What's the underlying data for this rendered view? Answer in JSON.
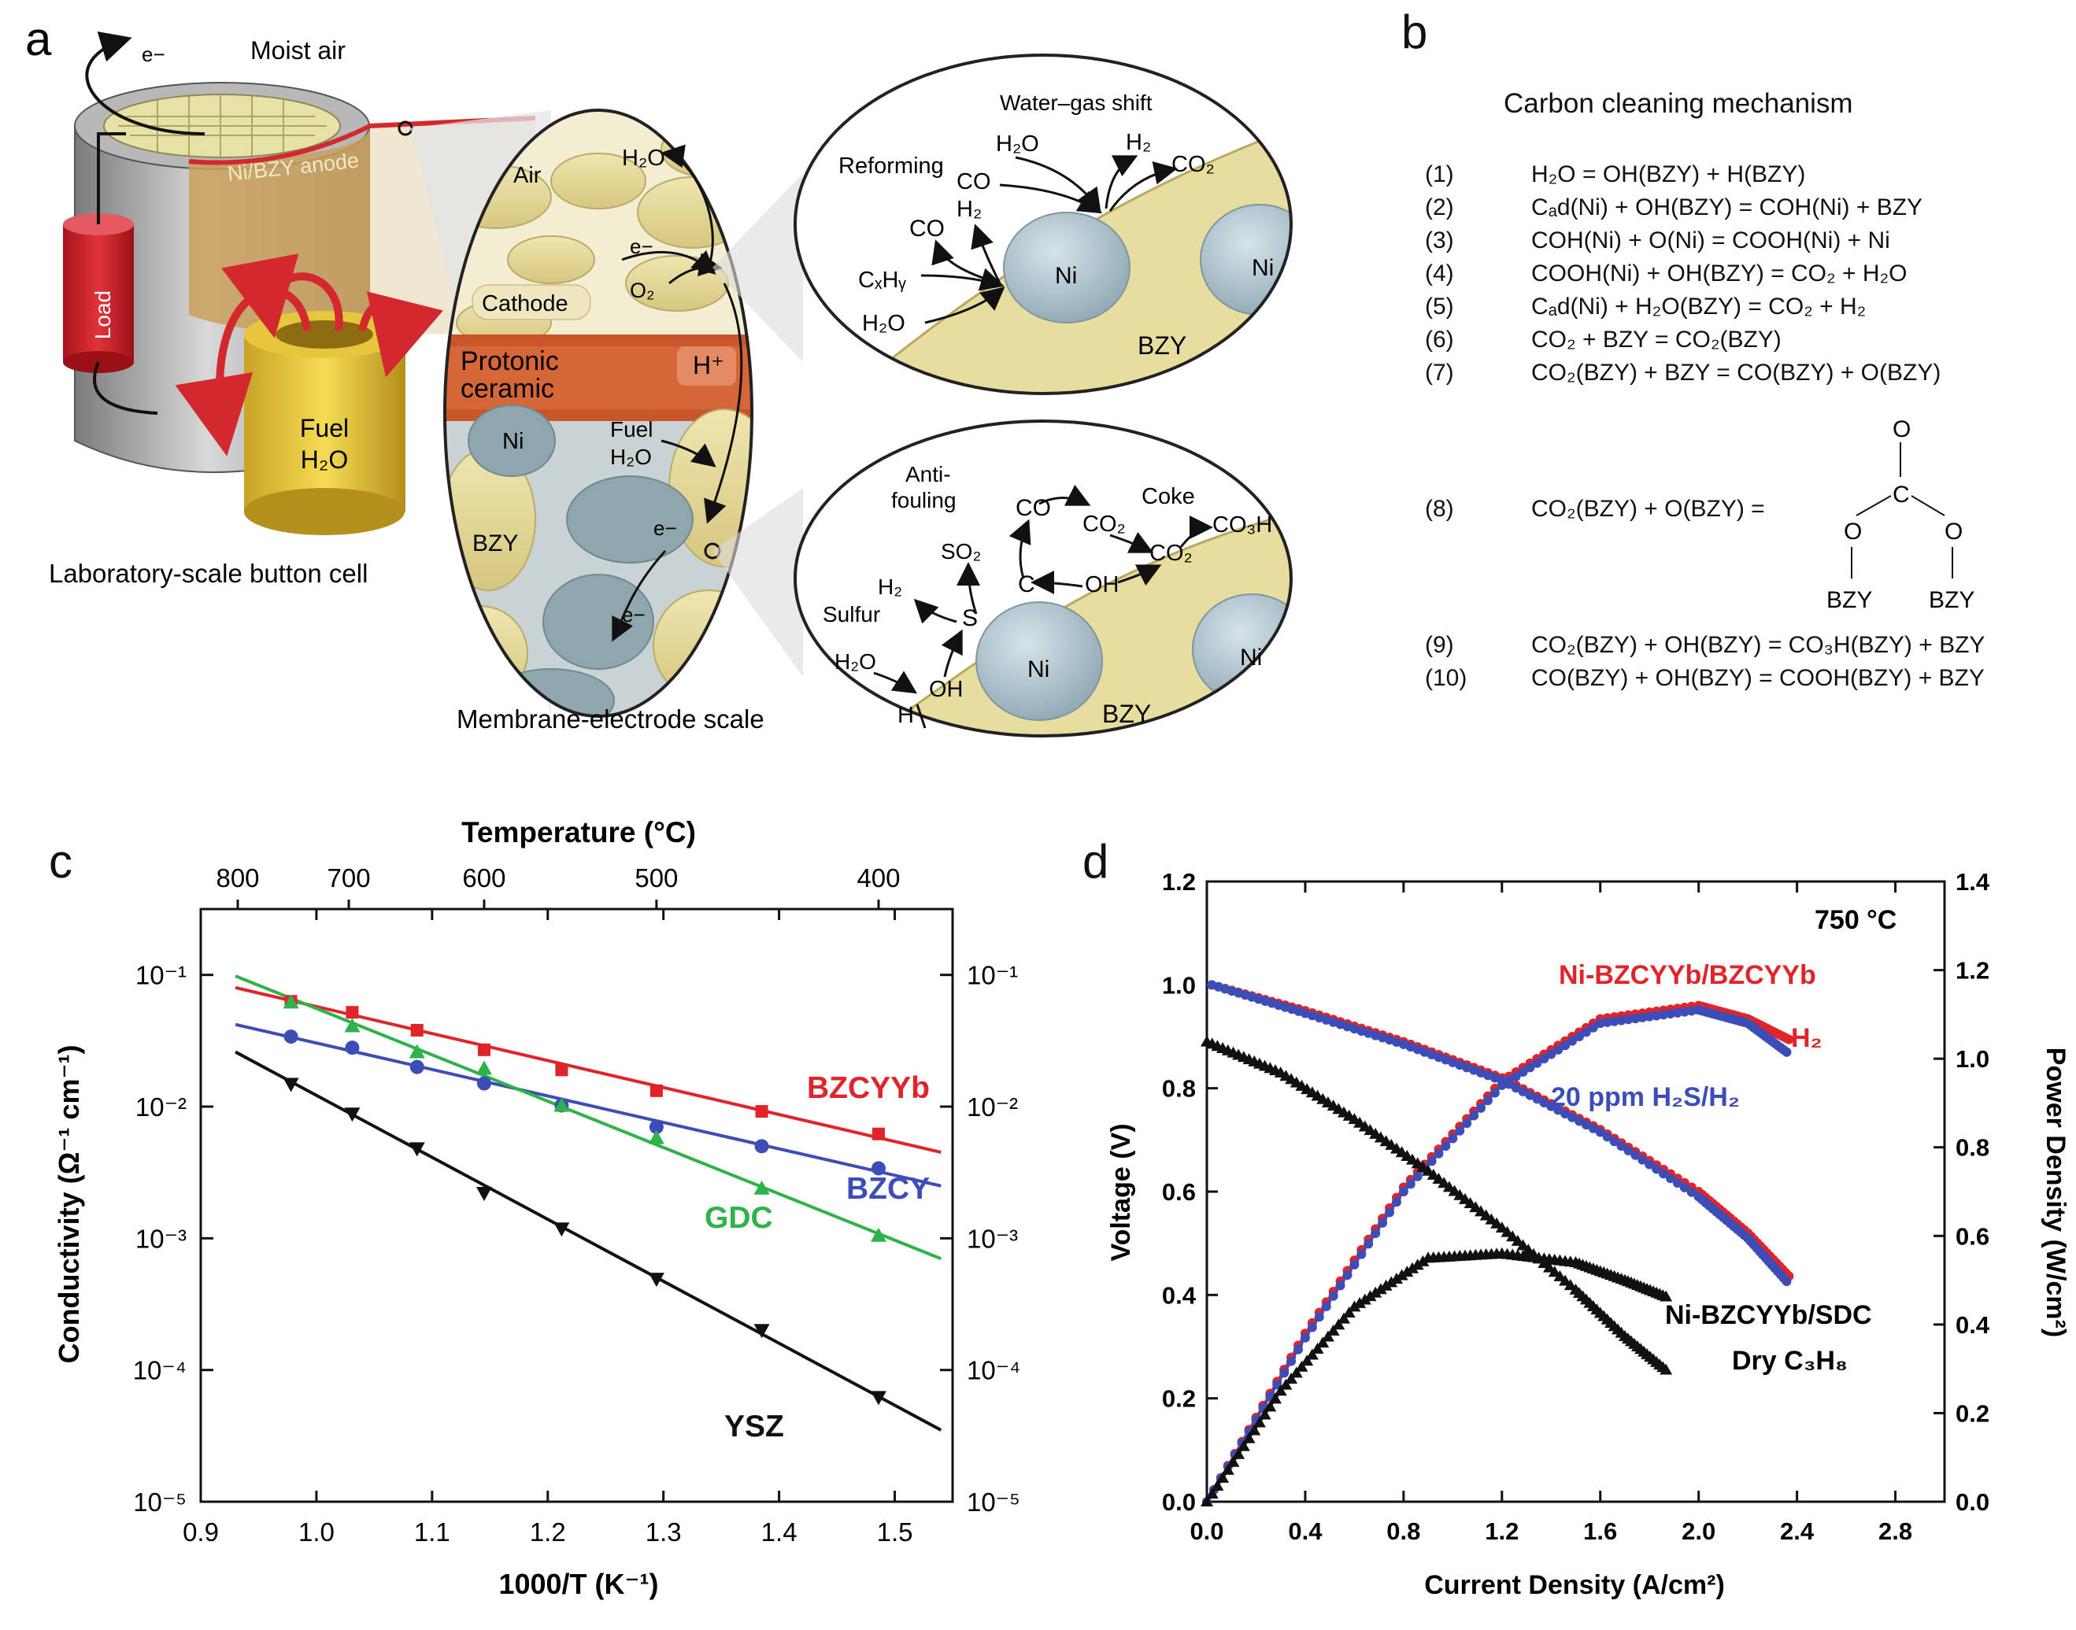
{
  "panel_a": {
    "letter": "a",
    "moist_air": "Moist air",
    "electron": "e−",
    "anode": "Ni/BZY anode",
    "load": "Load",
    "fuel": "Fuel",
    "water": "H₂O",
    "button_cell": "Laboratory-scale button cell",
    "membrane_scale": "Membrane-electrode scale",
    "air": "Air",
    "h2o": "H₂O",
    "o2": "O₂",
    "cathode": "Cathode",
    "protonic": "Protonic",
    "ceramic": "ceramic",
    "hplus": "H⁺",
    "ni": "Ni",
    "bzy": "BZY",
    "fuel_h2o_1": "Fuel",
    "fuel_h2o_2": "H₂O",
    "top_zoom": {
      "water_gas_shift": "Water–gas shift",
      "reforming": "Reforming",
      "co": "CO",
      "h2": "H₂",
      "co2": "CO₂",
      "h2o": "H₂O",
      "cxhy": "CₓHᵧ",
      "ni1": "Ni",
      "ni2": "Ni",
      "bzy": "BZY"
    },
    "bottom_zoom": {
      "anti": "Anti-",
      "fouling": "fouling",
      "coke": "Coke",
      "co": "CO",
      "co2a": "CO₂",
      "co2b": "CO₂",
      "co3h": "CO₃H",
      "so2": "SO₂",
      "h2": "H₂",
      "s": "S",
      "c": "C",
      "oh1": "OH",
      "oh2": "OH",
      "sulfur": "Sulfur",
      "h2o": "H₂O",
      "h": "H",
      "ni1": "Ni",
      "ni2": "Ni",
      "bzy": "BZY"
    }
  },
  "panel_b": {
    "letter": "b",
    "title": "Carbon cleaning mechanism",
    "equations": [
      {
        "num": "(1)",
        "text": "H₂O = OH(BZY) + H(BZY)"
      },
      {
        "num": "(2)",
        "text": "Cₐd(Ni) + OH(BZY) = COH(Ni) + BZY"
      },
      {
        "num": "(3)",
        "text": "COH(Ni) + O(Ni) = COOH(Ni) + Ni"
      },
      {
        "num": "(4)",
        "text": "COOH(Ni) + OH(BZY) = CO₂ + H₂O"
      },
      {
        "num": "(5)",
        "text": "Cₐd(Ni) + H₂O(BZY) = CO₂ + H₂"
      },
      {
        "num": "(6)",
        "text": "CO₂ + BZY = CO₂(BZY)"
      },
      {
        "num": "(7)",
        "text": "CO₂(BZY) + BZY = CO(BZY) + O(BZY)"
      },
      {
        "num": "(8)",
        "text": "CO₂(BZY) + O(BZY) ="
      },
      {
        "num": "(9)",
        "text": "CO₂(BZY) + OH(BZY) = CO₃H(BZY) + BZY"
      },
      {
        "num": "(10)",
        "text": "CO(BZY) + OH(BZY) = COOH(BZY) + BZY"
      }
    ],
    "carbonate": {
      "o_top": "O",
      "c": "C",
      "o_left": "O",
      "o_right": "O",
      "bzy_left": "BZY",
      "bzy_right": "BZY"
    }
  },
  "chart_data": [
    {
      "panel": "c",
      "type": "scatter",
      "xlabel": "1000/T (K⁻¹)",
      "ylabel": "Conductivity (Ω⁻¹ cm⁻¹)",
      "top_label": "Temperature (°C)",
      "xlim": [
        0.9,
        1.55
      ],
      "ylim_log10": [
        -5,
        -0.5
      ],
      "xticks": [
        "0.9",
        "1.0",
        "1.1",
        "1.2",
        "1.3",
        "1.4",
        "1.5"
      ],
      "yticks": [
        "10⁻⁵",
        "10⁻⁴",
        "10⁻³",
        "10⁻²",
        "10⁻¹"
      ],
      "top_ticks": [
        {
          "label": "800",
          "x": 0.932
        },
        {
          "label": "700",
          "x": 1.028
        },
        {
          "label": "600",
          "x": 1.145
        },
        {
          "label": "500",
          "x": 1.294
        },
        {
          "label": "400",
          "x": 1.486
        }
      ],
      "series": [
        {
          "name": "BZCYYb",
          "color": "#e0242a",
          "marker": "square",
          "x": [
            0.978,
            1.031,
            1.087,
            1.145,
            1.212,
            1.294,
            1.385,
            1.486
          ],
          "y": [
            0.063,
            0.052,
            0.038,
            0.027,
            0.019,
            0.0132,
            0.0092,
            0.0062
          ],
          "fit": [
            [
              0.93,
              0.08
            ],
            [
              1.54,
              0.0045
            ]
          ]
        },
        {
          "name": "BZCY",
          "color": "#3d4db8",
          "marker": "circle",
          "x": [
            0.978,
            1.031,
            1.087,
            1.145,
            1.212,
            1.294,
            1.385,
            1.486
          ],
          "y": [
            0.034,
            0.028,
            0.02,
            0.015,
            0.0102,
            0.007,
            0.005,
            0.0034
          ],
          "fit": [
            [
              0.93,
              0.042
            ],
            [
              1.54,
              0.0025
            ]
          ]
        },
        {
          "name": "GDC",
          "color": "#2db34a",
          "marker": "triangle",
          "x": [
            0.978,
            1.031,
            1.087,
            1.145,
            1.212,
            1.294,
            1.385,
            1.486
          ],
          "y": [
            0.062,
            0.041,
            0.026,
            0.0195,
            0.0102,
            0.0058,
            0.0024,
            0.00105
          ],
          "fit": [
            [
              0.93,
              0.098
            ],
            [
              1.54,
              0.0007
            ]
          ]
        },
        {
          "name": "YSZ",
          "color": "#111111",
          "marker": "triangle-down",
          "x": [
            0.978,
            1.031,
            1.087,
            1.145,
            1.212,
            1.294,
            1.385,
            1.486
          ],
          "y": [
            0.0148,
            0.0088,
            0.0048,
            0.0022,
            0.00118,
            0.00049,
            0.0002,
            6.2e-05
          ],
          "fit": [
            [
              0.93,
              0.026
            ],
            [
              1.54,
              3.5e-05
            ]
          ]
        }
      ]
    },
    {
      "panel": "d",
      "type": "line",
      "xlabel": "Current Density (A/cm²)",
      "ylabel": "Voltage (V)",
      "y2label": "Power Density (W/cm²)",
      "xlim": [
        0.0,
        3.0
      ],
      "ylim": [
        0.0,
        1.2
      ],
      "y2lim": [
        0.0,
        1.4
      ],
      "xticks": [
        "0.0",
        "0.4",
        "0.8",
        "1.2",
        "1.6",
        "2.0",
        "2.4",
        "2.8"
      ],
      "yticks": [
        "0.0",
        "0.2",
        "0.4",
        "0.6",
        "0.8",
        "1.0",
        "1.2"
      ],
      "y2ticks": [
        "0.0",
        "0.2",
        "0.4",
        "0.6",
        "0.8",
        "1.0",
        "1.2",
        "1.4"
      ],
      "annotations": {
        "temp": "750 °C",
        "nibzcyyb": "Ni-BZCYYb/BZCYYb",
        "h2": "H₂",
        "h2s": "20 ppm H₂S/H₂",
        "sdc": "Ni-BZCYYb/SDC",
        "c3h8": "Dry C₃H₈"
      },
      "series": [
        {
          "name": "H₂ voltage",
          "color": "#e0242a",
          "axis": "left",
          "x": [
            0.02,
            0.4,
            0.8,
            1.2,
            1.6,
            2.0,
            2.2,
            2.38
          ],
          "y": [
            1.0,
            0.95,
            0.89,
            0.82,
            0.72,
            0.6,
            0.52,
            0.43
          ]
        },
        {
          "name": "H₂ power",
          "color": "#e0242a",
          "axis": "right",
          "x": [
            0.0,
            0.4,
            0.8,
            1.2,
            1.6,
            2.0,
            2.2,
            2.38
          ],
          "y": [
            0.0,
            0.38,
            0.71,
            0.95,
            1.09,
            1.12,
            1.09,
            1.04
          ]
        },
        {
          "name": "20 ppm H₂S/H₂ voltage",
          "color": "#3d4db8",
          "axis": "left",
          "x": [
            0.02,
            0.4,
            0.8,
            1.2,
            1.6,
            2.0,
            2.2,
            2.37
          ],
          "y": [
            1.0,
            0.945,
            0.885,
            0.815,
            0.715,
            0.59,
            0.51,
            0.42
          ]
        },
        {
          "name": "20 ppm H₂S/H₂ power",
          "color": "#3d4db8",
          "axis": "right",
          "x": [
            0.0,
            0.4,
            0.8,
            1.2,
            1.6,
            2.0,
            2.2,
            2.37
          ],
          "y": [
            0.0,
            0.37,
            0.7,
            0.94,
            1.08,
            1.11,
            1.08,
            1.01
          ]
        },
        {
          "name": "Dry C₃H₈ voltage",
          "color": "#111111",
          "axis": "left",
          "x": [
            0.0,
            0.3,
            0.6,
            0.9,
            1.2,
            1.5,
            1.7,
            1.88
          ],
          "y": [
            0.89,
            0.83,
            0.74,
            0.64,
            0.53,
            0.41,
            0.32,
            0.25
          ]
        },
        {
          "name": "Dry C₃H₈ power",
          "color": "#111111",
          "axis": "right",
          "x": [
            0.0,
            0.3,
            0.6,
            0.9,
            1.2,
            1.5,
            1.7,
            1.88
          ],
          "y": [
            0.0,
            0.25,
            0.44,
            0.55,
            0.56,
            0.54,
            0.5,
            0.46
          ]
        }
      ]
    }
  ]
}
